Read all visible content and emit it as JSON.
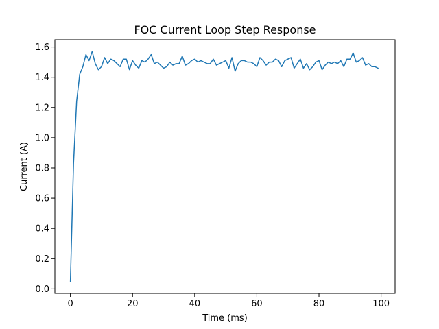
{
  "chart_data": {
    "type": "line",
    "title": "FOC Current Loop Step Response",
    "xlabel": "Time (ms)",
    "ylabel": "Current (A)",
    "xlim": [
      -5,
      104.5
    ],
    "ylim": [
      -0.03,
      1.648
    ],
    "xticks": [
      0,
      20,
      40,
      60,
      80,
      100
    ],
    "yticks": [
      0.0,
      0.2,
      0.4,
      0.6,
      0.8,
      1.0,
      1.2,
      1.4,
      1.6
    ],
    "xtick_labels": [
      "0",
      "20",
      "40",
      "60",
      "80",
      "100"
    ],
    "ytick_labels": [
      "0.0",
      "0.2",
      "0.4",
      "0.6",
      "0.8",
      "1.0",
      "1.2",
      "1.4",
      "1.6"
    ],
    "grid": false,
    "series": [
      {
        "color": "#1f77b4",
        "x": [
          0,
          1,
          2,
          3,
          4,
          5,
          6,
          7,
          8,
          9,
          10,
          11,
          12,
          13,
          14,
          15,
          16,
          17,
          18,
          19,
          20,
          21,
          22,
          23,
          24,
          25,
          26,
          27,
          28,
          29,
          30,
          31,
          32,
          33,
          34,
          35,
          36,
          37,
          38,
          39,
          40,
          41,
          42,
          43,
          44,
          45,
          46,
          47,
          48,
          49,
          50,
          51,
          52,
          53,
          54,
          55,
          56,
          57,
          58,
          59,
          60,
          61,
          62,
          63,
          64,
          65,
          66,
          67,
          68,
          69,
          70,
          71,
          72,
          73,
          74,
          75,
          76,
          77,
          78,
          79,
          80,
          81,
          82,
          83,
          84,
          85,
          86,
          87,
          88,
          89,
          90,
          91,
          92,
          93,
          94,
          95,
          96,
          97,
          98,
          99
        ],
        "y": [
          0.05,
          0.83,
          1.24,
          1.42,
          1.47,
          1.55,
          1.51,
          1.57,
          1.49,
          1.45,
          1.47,
          1.53,
          1.49,
          1.52,
          1.51,
          1.49,
          1.47,
          1.52,
          1.52,
          1.45,
          1.51,
          1.48,
          1.46,
          1.51,
          1.5,
          1.52,
          1.55,
          1.49,
          1.5,
          1.48,
          1.46,
          1.47,
          1.5,
          1.48,
          1.49,
          1.49,
          1.54,
          1.48,
          1.49,
          1.51,
          1.52,
          1.5,
          1.51,
          1.5,
          1.49,
          1.49,
          1.52,
          1.48,
          1.49,
          1.5,
          1.51,
          1.46,
          1.53,
          1.44,
          1.49,
          1.51,
          1.51,
          1.5,
          1.5,
          1.49,
          1.47,
          1.53,
          1.51,
          1.48,
          1.5,
          1.5,
          1.52,
          1.51,
          1.47,
          1.51,
          1.52,
          1.53,
          1.46,
          1.49,
          1.52,
          1.46,
          1.49,
          1.45,
          1.47,
          1.5,
          1.51,
          1.45,
          1.48,
          1.5,
          1.49,
          1.5,
          1.49,
          1.51,
          1.47,
          1.52,
          1.52,
          1.56,
          1.5,
          1.51,
          1.53,
          1.48,
          1.49,
          1.47,
          1.47,
          1.46
        ]
      }
    ]
  }
}
